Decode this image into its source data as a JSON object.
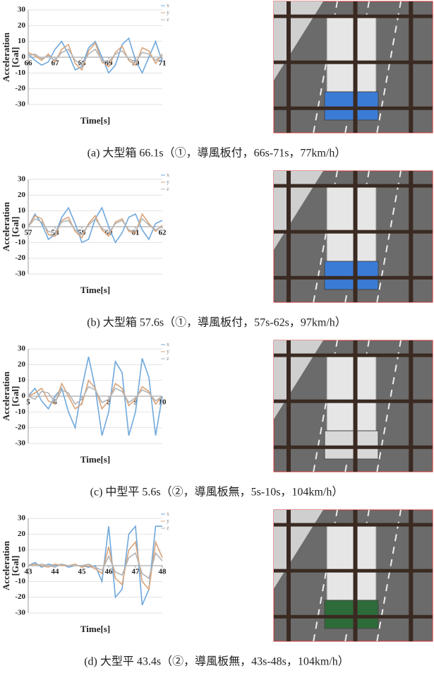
{
  "chart_data": [
    {
      "type": "line",
      "x_label": "Time[s]",
      "y_label": [
        "Acceleration",
        "[Gal]"
      ],
      "x": [
        66,
        66.25,
        66.5,
        66.75,
        67,
        67.25,
        67.5,
        67.75,
        68,
        68.25,
        68.5,
        68.75,
        69,
        69.25,
        69.5,
        69.75,
        70,
        70.25,
        70.5,
        70.75,
        71
      ],
      "xlim": [
        66,
        71
      ],
      "xticks": [
        66,
        67,
        68,
        69,
        70,
        71
      ],
      "ylim": [
        -30,
        30
      ],
      "yticks": [
        30,
        20,
        10,
        0,
        -10,
        -20,
        -30
      ],
      "grid": true,
      "series": [
        {
          "name": "x",
          "color": "#6fa8dc",
          "values": [
            2,
            -2,
            -5,
            -3,
            5,
            10,
            2,
            -8,
            -6,
            6,
            10,
            0,
            -10,
            -5,
            8,
            12,
            -2,
            -10,
            0,
            10,
            -3
          ]
        },
        {
          "name": "y",
          "color": "#d9a47a",
          "values": [
            3,
            1,
            -2,
            2,
            -3,
            5,
            8,
            -4,
            -8,
            4,
            9,
            -3,
            -6,
            3,
            7,
            -2,
            -5,
            6,
            4,
            -4,
            2
          ]
        },
        {
          "name": "z",
          "color": "#b5b5b5",
          "values": [
            1,
            2,
            -1,
            1,
            -2,
            3,
            5,
            -2,
            -5,
            2,
            5,
            -2,
            -3,
            2,
            4,
            -1,
            -3,
            3,
            2,
            -2,
            1
          ]
        }
      ]
    },
    {
      "type": "line",
      "x_label": "Time[s]",
      "y_label": [
        "Acceleration",
        "[Gal]"
      ],
      "x": [
        57,
        57.25,
        57.5,
        57.75,
        58,
        58.25,
        58.5,
        58.75,
        59,
        59.25,
        59.5,
        59.75,
        60,
        60.25,
        60.5,
        60.75,
        61,
        61.25,
        61.5,
        61.75,
        62
      ],
      "xlim": [
        57,
        62
      ],
      "xticks": [
        57,
        58,
        59,
        60,
        61,
        62
      ],
      "ylim": [
        -30,
        30
      ],
      "yticks": [
        30,
        20,
        10,
        0,
        -10,
        -20,
        -30
      ],
      "grid": true,
      "series": [
        {
          "name": "x",
          "color": "#6fa8dc",
          "values": [
            0,
            8,
            2,
            -8,
            -5,
            6,
            12,
            2,
            -10,
            -8,
            5,
            12,
            0,
            -10,
            -4,
            6,
            8,
            -2,
            -8,
            2,
            4
          ]
        },
        {
          "name": "y",
          "color": "#d9a47a",
          "values": [
            0,
            7,
            5,
            -5,
            -6,
            4,
            6,
            -3,
            -7,
            2,
            7,
            -2,
            -6,
            3,
            5,
            -3,
            -4,
            8,
            2,
            -3,
            1
          ]
        },
        {
          "name": "z",
          "color": "#b5b5b5",
          "values": [
            0,
            5,
            3,
            -3,
            -4,
            3,
            4,
            -2,
            -5,
            1,
            5,
            -1,
            -4,
            2,
            4,
            -2,
            -3,
            5,
            1,
            -2,
            0
          ]
        }
      ]
    },
    {
      "type": "line",
      "x_label": "Time[s]",
      "y_label": [
        "Acceleration",
        "[Gal]"
      ],
      "x": [
        5,
        5.25,
        5.5,
        5.75,
        6,
        6.25,
        6.5,
        6.75,
        7,
        7.25,
        7.5,
        7.75,
        8,
        8.25,
        8.5,
        8.75,
        9,
        9.25,
        9.5,
        9.75,
        10
      ],
      "xlim": [
        5,
        10
      ],
      "xticks": [
        5,
        6,
        7,
        8,
        9,
        10
      ],
      "ylim": [
        -30,
        30
      ],
      "yticks": [
        30,
        20,
        10,
        0,
        -10,
        -20,
        -30
      ],
      "grid": true,
      "series": [
        {
          "name": "x",
          "color": "#6fa8dc",
          "values": [
            0,
            5,
            -3,
            -8,
            0,
            5,
            -10,
            -20,
            5,
            25,
            5,
            -25,
            -10,
            22,
            15,
            -25,
            -10,
            24,
            12,
            -25,
            0
          ]
        },
        {
          "name": "y",
          "color": "#d9a47a",
          "values": [
            0,
            2,
            5,
            -3,
            -5,
            8,
            0,
            -8,
            -5,
            10,
            5,
            -8,
            -3,
            8,
            5,
            -6,
            -2,
            6,
            3,
            -5,
            0
          ]
        },
        {
          "name": "z",
          "color": "#b5b5b5",
          "values": [
            0,
            -2,
            3,
            2,
            -4,
            4,
            2,
            -5,
            -2,
            6,
            4,
            -4,
            -2,
            5,
            3,
            -4,
            -1,
            4,
            2,
            -3,
            0
          ]
        }
      ]
    },
    {
      "type": "line",
      "x_label": "Time[s]",
      "y_label": [
        "Acceleration",
        "[Gal]"
      ],
      "x": [
        43,
        43.25,
        43.5,
        43.75,
        44,
        44.25,
        44.5,
        44.75,
        45,
        45.25,
        45.5,
        45.75,
        46,
        46.25,
        46.5,
        46.75,
        47,
        47.25,
        47.5,
        47.75,
        48
      ],
      "xlim": [
        43,
        48
      ],
      "xticks": [
        43,
        44,
        45,
        46,
        47,
        48
      ],
      "ylim": [
        -30,
        30
      ],
      "yticks": [
        30,
        20,
        10,
        0,
        -10,
        -20,
        -30
      ],
      "grid": true,
      "series": [
        {
          "name": "x",
          "color": "#6fa8dc",
          "values": [
            0,
            2,
            -1,
            1,
            0,
            1,
            -1,
            0,
            0,
            -1,
            0,
            -10,
            25,
            -20,
            -15,
            20,
            25,
            -25,
            -15,
            25,
            25
          ]
        },
        {
          "name": "y",
          "color": "#d9a47a",
          "values": [
            0,
            1,
            0,
            -1,
            1,
            0,
            0,
            1,
            -1,
            0,
            -2,
            -5,
            12,
            -8,
            -12,
            10,
            15,
            -10,
            -15,
            15,
            5
          ]
        },
        {
          "name": "z",
          "color": "#b5b5b5",
          "values": [
            0,
            0,
            1,
            0,
            -1,
            1,
            0,
            0,
            0,
            1,
            -1,
            -3,
            6,
            -4,
            -6,
            5,
            8,
            -5,
            -8,
            8,
            3
          ]
        }
      ]
    }
  ],
  "captions": [
    "(a) 大型箱 66.1s（①，導風板付，66s-71s，77km/h）",
    "(b) 大型箱 57.6s（①，導風板付，57s-62s，97km/h）",
    "(c) 中型平 5.6s（②，導風板無，5s-10s，104km/h）",
    "(d) 大型平 43.4s（②，導風板無，43s-48s，104km/h）"
  ]
}
